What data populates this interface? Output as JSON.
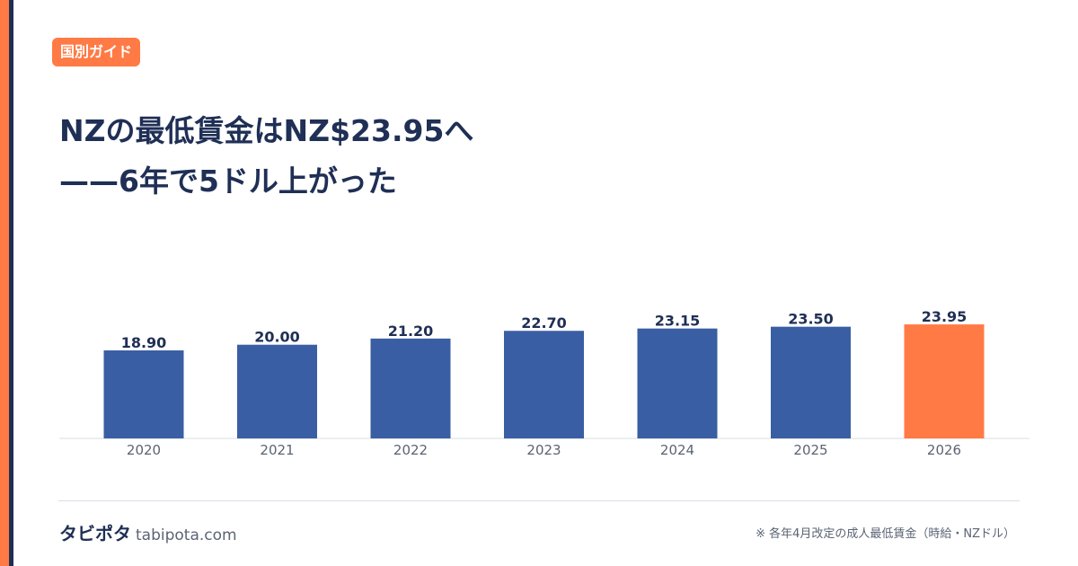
{
  "badge": "国別ガイド",
  "title": {
    "line1": "NZの最低賃金はNZ$23.95へ",
    "line2": "——6年で5ドル上がった"
  },
  "footer": {
    "brand": "タビポタ",
    "domain": "tabipota.com",
    "note": "※ 各年4月改定の成人最低賃金（時給・NZドル）"
  },
  "colors": {
    "bar": "#3a5ea3",
    "highlight": "#ff7a45",
    "label": "#1f2f55",
    "tick": "#5b6474",
    "axis": "#d9dee6"
  },
  "chart_data": {
    "type": "bar",
    "title": "",
    "xlabel": "",
    "ylabel": "",
    "categories": [
      "2020",
      "2021",
      "2022",
      "2023",
      "2024",
      "2025",
      "2026"
    ],
    "values": [
      18.9,
      20.0,
      21.2,
      22.7,
      23.15,
      23.5,
      23.95
    ],
    "value_labels": [
      "18.90",
      "20.00",
      "21.20",
      "22.70",
      "23.15",
      "23.50",
      "23.95"
    ],
    "highlight_index": 6,
    "grid": false,
    "legend": "none"
  }
}
